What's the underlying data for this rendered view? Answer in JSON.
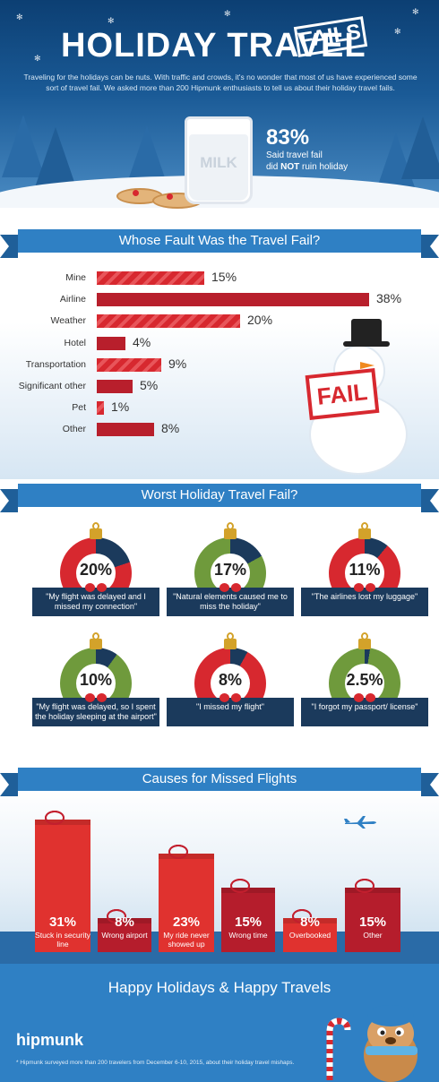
{
  "header": {
    "title_main": "HOLIDAY TRAVEL",
    "title_badge": "FAILS",
    "intro": "Traveling for the holidays can be nuts. With traffic and crowds, it's no wonder that most of us have experienced some sort of travel fail. We asked more than 200 Hipmunk enthusiasts to tell us about their holiday travel fails.",
    "milk_label": "MILK",
    "stat_value": "83%",
    "stat_line1": "Said travel fail",
    "stat_line2_pre": "did ",
    "stat_line2_bold": "NOT",
    "stat_line2_post": " ruin holiday",
    "colors": {
      "sky_top": "#0c3f73",
      "sky_bottom": "#4b8cc4",
      "tree": "#2a6ba7"
    }
  },
  "fault": {
    "heading": "Whose Fault Was the Travel Fail?",
    "sign_text": "FAIL",
    "chart_data": {
      "type": "bar",
      "orientation": "horizontal",
      "title": "Whose Fault Was the Travel Fail?",
      "categories": [
        "Mine",
        "Airline",
        "Weather",
        "Hotel",
        "Transportation",
        "Significant other",
        "Pet",
        "Other"
      ],
      "values": [
        15,
        38,
        20,
        4,
        9,
        5,
        1,
        8
      ],
      "value_labels": [
        "15%",
        "38%",
        "20%",
        "4%",
        "9%",
        "5%",
        "1%",
        "8%"
      ],
      "striped": [
        true,
        false,
        true,
        false,
        true,
        false,
        true,
        false
      ],
      "unit": "%",
      "xlim": [
        0,
        38
      ],
      "colors": {
        "bar": "#d7282f",
        "bar_dark": "#b81f2c"
      }
    }
  },
  "worst": {
    "heading": "Worst Holiday Travel Fail?",
    "chart_data": {
      "type": "pie",
      "categories": [
        "\"My flight was delayed and I missed my connection\"",
        "\"Natural elements caused me to miss the holiday\"",
        "\"The airlines lost my luggage\"",
        "\"My flight was delayed, so I spent the holiday sleeping at the airport\"",
        "\"I missed my flight\"",
        "\"I forgot my passport/ license\""
      ],
      "values": [
        20,
        17,
        11,
        10,
        8,
        2.5
      ],
      "value_labels": [
        "20%",
        "17%",
        "11%",
        "10%",
        "8%",
        "2.5%"
      ],
      "unit": "%"
    },
    "items": [
      {
        "pct": "20%",
        "quote": "\"My flight was delayed and I missed my connection\"",
        "color": "#d7282f"
      },
      {
        "pct": "17%",
        "quote": "\"Natural elements caused me to miss the holiday\"",
        "color": "#6f9a3c"
      },
      {
        "pct": "11%",
        "quote": "\"The airlines lost my luggage\"",
        "color": "#d7282f"
      },
      {
        "pct": "10%",
        "quote": "\"My flight was delayed, so I spent the holiday sleeping at the airport\"",
        "color": "#6f9a3c"
      },
      {
        "pct": "8%",
        "quote": "\"I missed my flight\"",
        "color": "#d7282f"
      },
      {
        "pct": "2.5%",
        "quote": "\"I forgot my passport/ license\"",
        "color": "#6f9a3c"
      }
    ],
    "slice_color": "#1b3a5c"
  },
  "causes": {
    "heading": "Causes for Missed Flights",
    "chart_data": {
      "type": "bar",
      "title": "Causes for Missed Flights",
      "categories": [
        "Stuck in security line",
        "Wrong airport",
        "My ride never showed up",
        "Wrong time",
        "Overbooked",
        "Other"
      ],
      "values": [
        31,
        8,
        23,
        15,
        8,
        15
      ],
      "value_labels": [
        "31%",
        "8%",
        "23%",
        "15%",
        "8%",
        "15%"
      ],
      "unit": "%",
      "ylim": [
        0,
        31
      ],
      "colors": [
        "#e0322f",
        "#b51d2c",
        "#e0322f",
        "#b51d2c",
        "#e0322f",
        "#b51d2c"
      ]
    }
  },
  "footer": {
    "closing": "Happy Holidays & Happy Travels",
    "brand": "hipmunk",
    "footnote": "* Hipmunk surveyed more than 200 travelers from December 6-10, 2015, about their holiday travel mishaps."
  }
}
